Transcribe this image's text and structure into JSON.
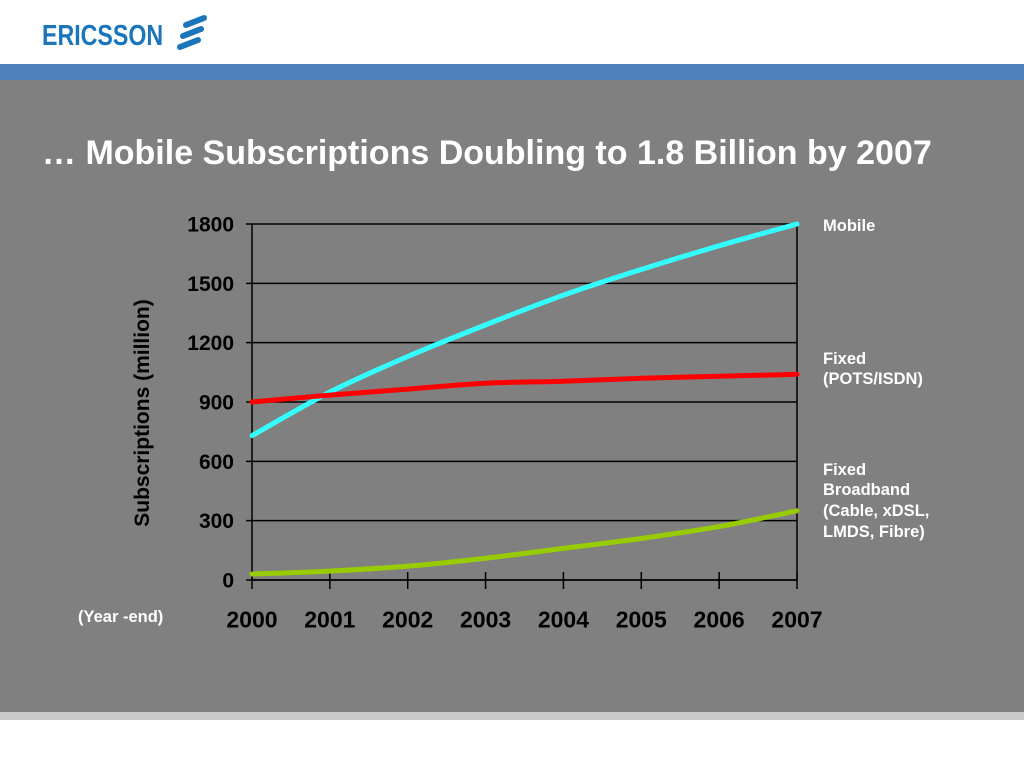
{
  "theme": {
    "brand_blue": "#1a75bb",
    "band_blue": "#4f81bd",
    "slide_gray": "#808080",
    "strip_gray": "#c9c9c9"
  },
  "logo": {
    "text": "ERICSSON",
    "icon": "ericsson-logo-mark"
  },
  "chart_data": {
    "type": "line",
    "title": "… Mobile Subscriptions Doubling to 1.8 Billion by 2007",
    "xlabel": "(Year -end)",
    "ylabel": "Subscriptions (million)",
    "x": [
      "2000",
      "2001",
      "2002",
      "2003",
      "2004",
      "2005",
      "2006",
      "2007"
    ],
    "ylim": [
      0,
      1800
    ],
    "yticks": [
      0,
      300,
      600,
      900,
      1200,
      1500,
      1800
    ],
    "grid": true,
    "legend": "right",
    "series": [
      {
        "name": "Mobile",
        "color": "#33ffff",
        "values": [
          730,
          950,
          1130,
          1290,
          1440,
          1570,
          1690,
          1800
        ]
      },
      {
        "name": "Fixed\n(POTS/ISDN)",
        "color": "#ff0000",
        "values": [
          900,
          935,
          965,
          995,
          1005,
          1020,
          1030,
          1040
        ]
      },
      {
        "name": "Fixed\nBroadband\n(Cable, xDSL,\nLMDS, Fibre)",
        "color": "#99cc00",
        "values": [
          30,
          45,
          70,
          110,
          160,
          210,
          270,
          350
        ]
      }
    ]
  }
}
